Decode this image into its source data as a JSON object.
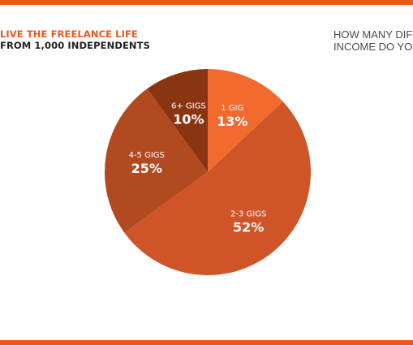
{
  "header": {
    "left_line1": "LIVE THE FREELANCE LIFE",
    "left_line2": "FROM 1,000 INDEPENDENTS",
    "right_line1": "HOW MANY DIF",
    "right_line2": "INCOME DO YOU"
  },
  "colors": {
    "accent": "#e8571f"
  },
  "chart_data": {
    "type": "pie",
    "slices": [
      {
        "label": "1 GIG",
        "value": 13,
        "value_label": "13%",
        "color": "#f26a2e"
      },
      {
        "label": "2-3 GIGS",
        "value": 52,
        "value_label": "52%",
        "color": "#cf5428"
      },
      {
        "label": "4-5 GIGS",
        "value": 25,
        "value_label": "25%",
        "color": "#b24a20"
      },
      {
        "label": "6+ GIGS",
        "value": 10,
        "value_label": "10%",
        "color": "#8a3512"
      }
    ]
  }
}
